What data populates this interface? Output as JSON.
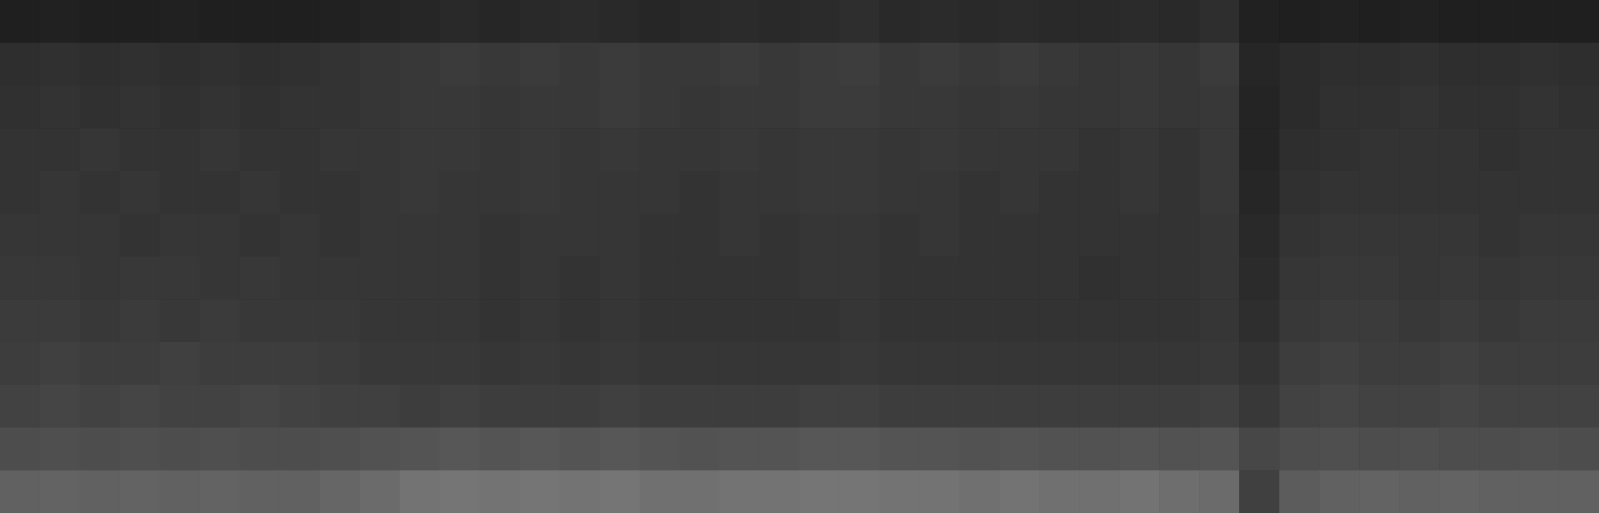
{
  "chart_data": {
    "type": "heatmap",
    "tick_labels": false,
    "xlim": [
      0,
      40
    ],
    "ylim": [
      0,
      12
    ],
    "color_range": [
      0,
      1
    ],
    "cells": [
      [
        0.12,
        0.13,
        0.12,
        0.12,
        0.13,
        0.12,
        0.12,
        0.12,
        0.13,
        0.14,
        0.15,
        0.16,
        0.15,
        0.16,
        0.17,
        0.16,
        0.15,
        0.16,
        0.17,
        0.16,
        0.17,
        0.18,
        0.16,
        0.17,
        0.16,
        0.17,
        0.16,
        0.16,
        0.17,
        0.16,
        0.18,
        0.13,
        0.12,
        0.13,
        0.12,
        0.13,
        0.12,
        0.12,
        0.12,
        0.12
      ],
      [
        0.18,
        0.19,
        0.18,
        0.19,
        0.18,
        0.19,
        0.18,
        0.19,
        0.2,
        0.21,
        0.22,
        0.23,
        0.22,
        0.23,
        0.22,
        0.23,
        0.22,
        0.22,
        0.23,
        0.22,
        0.23,
        0.24,
        0.22,
        0.23,
        0.22,
        0.23,
        0.22,
        0.21,
        0.22,
        0.21,
        0.23,
        0.15,
        0.17,
        0.18,
        0.18,
        0.19,
        0.18,
        0.18,
        0.19,
        0.18
      ],
      [
        0.19,
        0.2,
        0.19,
        0.2,
        0.19,
        0.2,
        0.19,
        0.2,
        0.2,
        0.21,
        0.22,
        0.22,
        0.21,
        0.22,
        0.22,
        0.23,
        0.22,
        0.21,
        0.22,
        0.22,
        0.23,
        0.23,
        0.22,
        0.22,
        0.21,
        0.22,
        0.21,
        0.21,
        0.22,
        0.21,
        0.22,
        0.14,
        0.17,
        0.19,
        0.19,
        0.2,
        0.19,
        0.19,
        0.2,
        0.19
      ],
      [
        0.2,
        0.2,
        0.21,
        0.2,
        0.2,
        0.21,
        0.2,
        0.2,
        0.21,
        0.21,
        0.22,
        0.22,
        0.21,
        0.22,
        0.21,
        0.22,
        0.21,
        0.21,
        0.22,
        0.21,
        0.22,
        0.22,
        0.21,
        0.22,
        0.21,
        0.21,
        0.21,
        0.2,
        0.21,
        0.2,
        0.22,
        0.14,
        0.18,
        0.19,
        0.2,
        0.2,
        0.2,
        0.19,
        0.2,
        0.2
      ],
      [
        0.2,
        0.21,
        0.2,
        0.21,
        0.2,
        0.2,
        0.21,
        0.2,
        0.2,
        0.21,
        0.22,
        0.21,
        0.21,
        0.22,
        0.21,
        0.21,
        0.21,
        0.2,
        0.21,
        0.21,
        0.22,
        0.22,
        0.21,
        0.21,
        0.2,
        0.21,
        0.2,
        0.2,
        0.21,
        0.2,
        0.22,
        0.15,
        0.19,
        0.2,
        0.2,
        0.2,
        0.2,
        0.2,
        0.2,
        0.2
      ],
      [
        0.21,
        0.21,
        0.21,
        0.2,
        0.21,
        0.21,
        0.2,
        0.21,
        0.2,
        0.21,
        0.21,
        0.21,
        0.2,
        0.21,
        0.21,
        0.21,
        0.2,
        0.2,
        0.21,
        0.2,
        0.21,
        0.21,
        0.2,
        0.21,
        0.2,
        0.2,
        0.2,
        0.2,
        0.2,
        0.2,
        0.21,
        0.16,
        0.2,
        0.21,
        0.21,
        0.21,
        0.21,
        0.2,
        0.21,
        0.21
      ],
      [
        0.22,
        0.22,
        0.21,
        0.22,
        0.22,
        0.21,
        0.22,
        0.21,
        0.21,
        0.21,
        0.21,
        0.21,
        0.2,
        0.21,
        0.2,
        0.21,
        0.2,
        0.2,
        0.2,
        0.2,
        0.21,
        0.21,
        0.2,
        0.2,
        0.2,
        0.2,
        0.2,
        0.19,
        0.2,
        0.2,
        0.21,
        0.17,
        0.21,
        0.22,
        0.22,
        0.21,
        0.22,
        0.21,
        0.22,
        0.22
      ],
      [
        0.23,
        0.23,
        0.22,
        0.23,
        0.22,
        0.23,
        0.22,
        0.22,
        0.22,
        0.21,
        0.21,
        0.21,
        0.2,
        0.21,
        0.2,
        0.21,
        0.2,
        0.2,
        0.2,
        0.2,
        0.2,
        0.21,
        0.2,
        0.2,
        0.2,
        0.2,
        0.2,
        0.2,
        0.2,
        0.2,
        0.21,
        0.18,
        0.22,
        0.23,
        0.23,
        0.22,
        0.23,
        0.22,
        0.23,
        0.23
      ],
      [
        0.24,
        0.25,
        0.24,
        0.24,
        0.25,
        0.24,
        0.24,
        0.24,
        0.23,
        0.22,
        0.22,
        0.22,
        0.21,
        0.22,
        0.21,
        0.22,
        0.21,
        0.21,
        0.21,
        0.21,
        0.21,
        0.22,
        0.21,
        0.21,
        0.21,
        0.21,
        0.21,
        0.21,
        0.21,
        0.21,
        0.22,
        0.2,
        0.24,
        0.25,
        0.24,
        0.24,
        0.25,
        0.24,
        0.24,
        0.24
      ],
      [
        0.26,
        0.27,
        0.26,
        0.27,
        0.26,
        0.26,
        0.27,
        0.26,
        0.25,
        0.25,
        0.24,
        0.25,
        0.24,
        0.24,
        0.24,
        0.25,
        0.24,
        0.24,
        0.24,
        0.24,
        0.25,
        0.25,
        0.24,
        0.24,
        0.24,
        0.24,
        0.24,
        0.24,
        0.24,
        0.24,
        0.25,
        0.22,
        0.26,
        0.27,
        0.26,
        0.26,
        0.27,
        0.26,
        0.26,
        0.26
      ],
      [
        0.3,
        0.31,
        0.3,
        0.31,
        0.3,
        0.31,
        0.3,
        0.3,
        0.31,
        0.32,
        0.33,
        0.34,
        0.33,
        0.34,
        0.33,
        0.34,
        0.33,
        0.32,
        0.33,
        0.33,
        0.34,
        0.34,
        0.33,
        0.33,
        0.32,
        0.33,
        0.32,
        0.32,
        0.33,
        0.32,
        0.33,
        0.28,
        0.3,
        0.31,
        0.3,
        0.31,
        0.3,
        0.3,
        0.31,
        0.3
      ],
      [
        0.38,
        0.39,
        0.38,
        0.39,
        0.38,
        0.39,
        0.38,
        0.38,
        0.4,
        0.42,
        0.45,
        0.46,
        0.45,
        0.46,
        0.45,
        0.46,
        0.44,
        0.44,
        0.45,
        0.45,
        0.46,
        0.46,
        0.45,
        0.45,
        0.44,
        0.45,
        0.44,
        0.44,
        0.45,
        0.43,
        0.42,
        0.25,
        0.36,
        0.38,
        0.39,
        0.38,
        0.39,
        0.38,
        0.38,
        0.38
      ]
    ]
  }
}
